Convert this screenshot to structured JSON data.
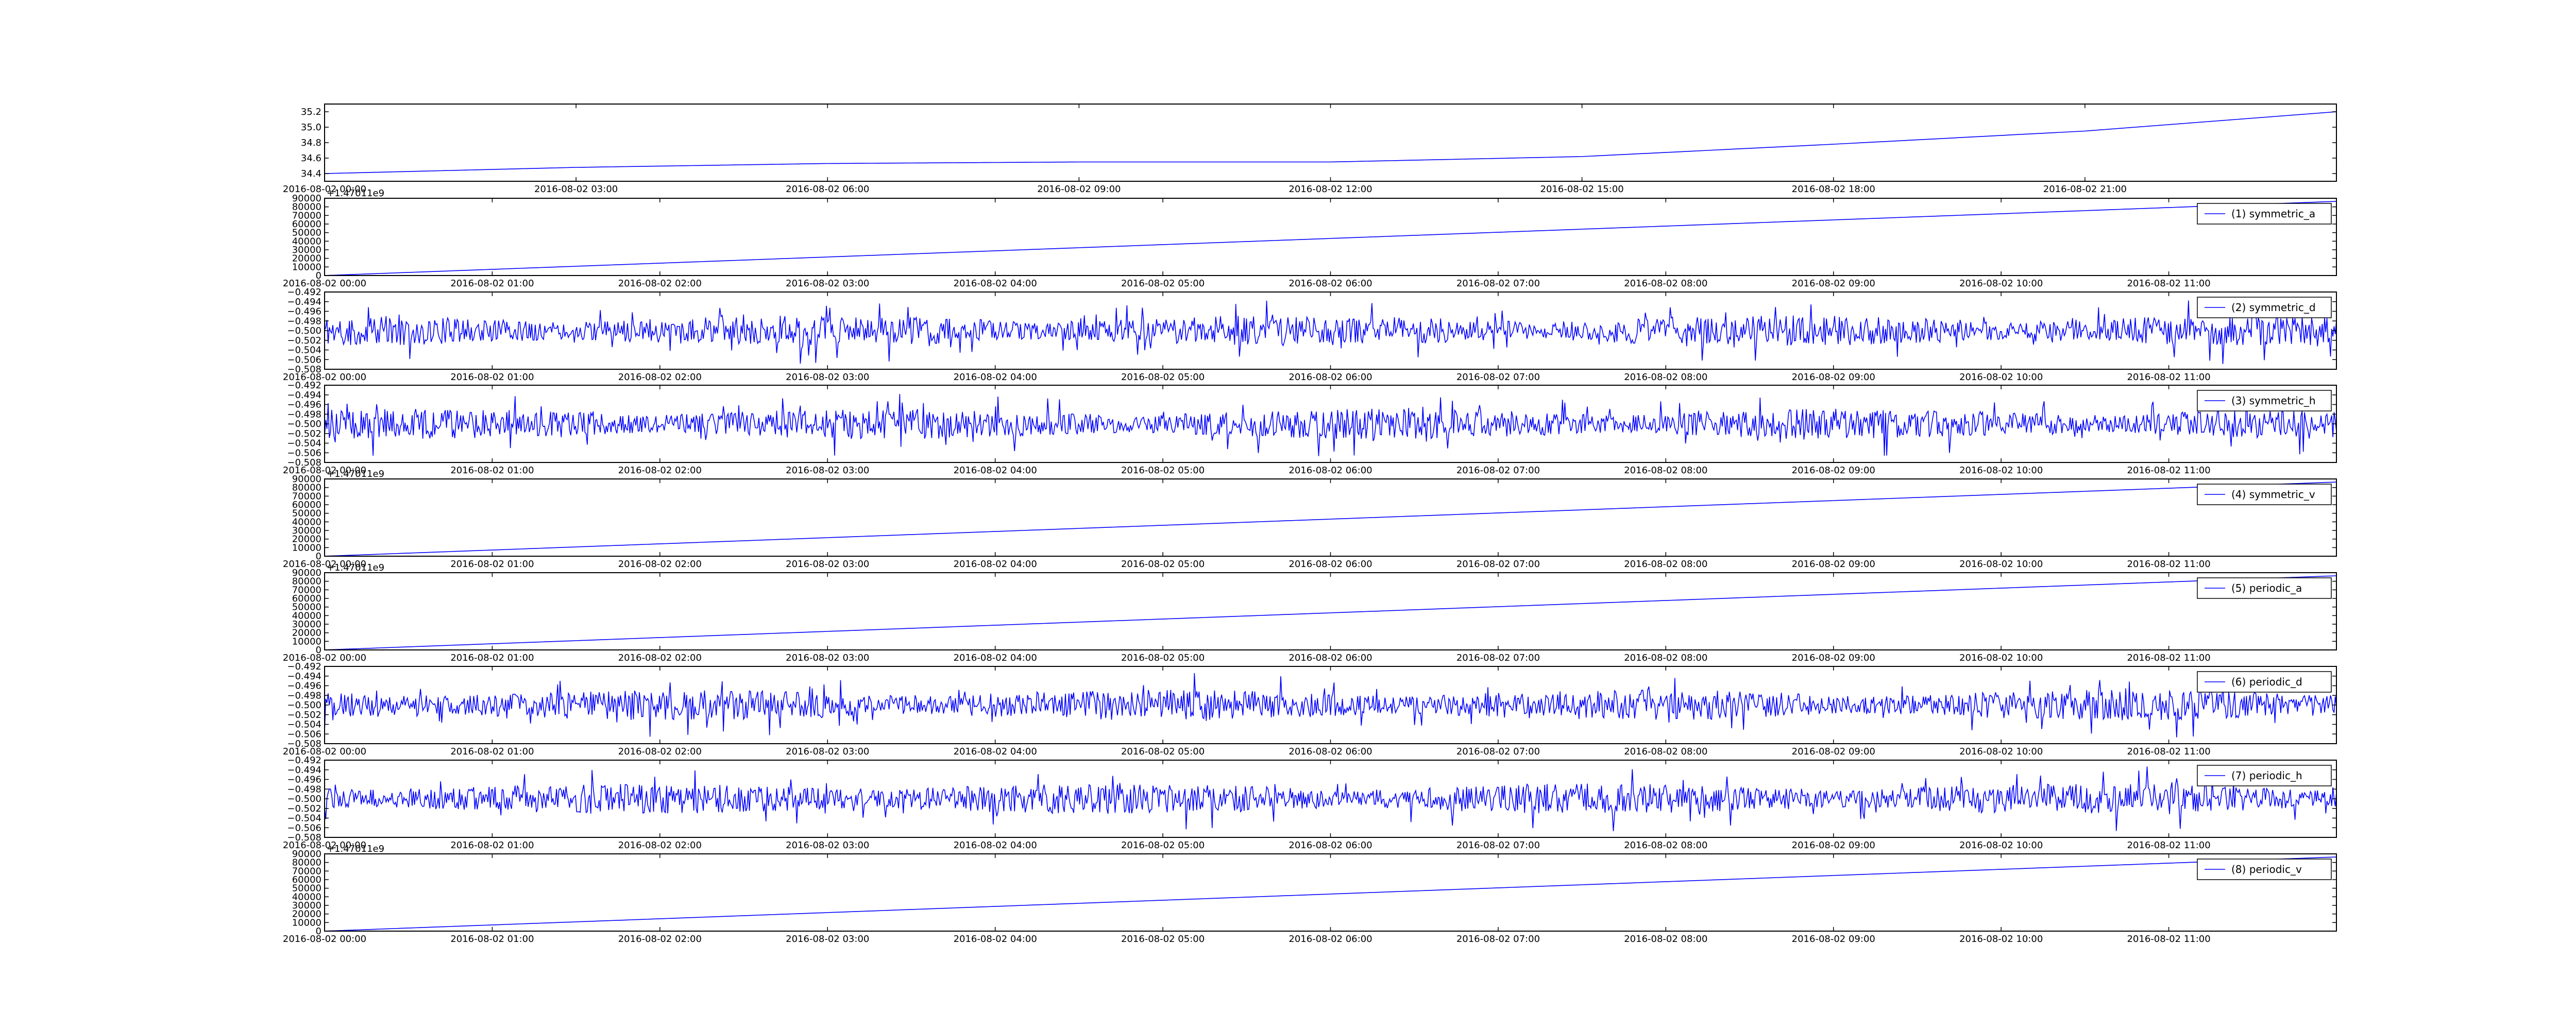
{
  "colors": {
    "line": "#0000ff",
    "axis": "#000000",
    "background": "#ffffff"
  },
  "chart_data": [
    {
      "type": "line",
      "panel": 0,
      "x_ticks": [
        "2016-08-02 00:00",
        "2016-08-02 03:00",
        "2016-08-02 06:00",
        "2016-08-02 09:00",
        "2016-08-02 12:00",
        "2016-08-02 15:00",
        "2016-08-02 18:00",
        "2016-08-02 21:00"
      ],
      "y_ticks": [
        "34.4",
        "34.6",
        "34.8",
        "35.0",
        "35.2"
      ],
      "ylim": [
        34.3,
        35.3
      ],
      "x_range_hours": [
        0,
        24
      ],
      "offset_label": "",
      "legend": "",
      "series": [
        {
          "x_hours": [
            0,
            3,
            6,
            9,
            12,
            15,
            18,
            21,
            24
          ],
          "values": [
            34.4,
            34.48,
            34.53,
            34.55,
            34.55,
            34.62,
            34.78,
            34.95,
            35.2
          ]
        }
      ]
    },
    {
      "type": "line",
      "panel": 1,
      "x_ticks": [
        "2016-08-02 00:00",
        "2016-08-02 01:00",
        "2016-08-02 02:00",
        "2016-08-02 03:00",
        "2016-08-02 04:00",
        "2016-08-02 05:00",
        "2016-08-02 06:00",
        "2016-08-02 07:00",
        "2016-08-02 08:00",
        "2016-08-02 09:00",
        "2016-08-02 10:00",
        "2016-08-02 11:00"
      ],
      "y_ticks": [
        "0",
        "10000",
        "20000",
        "30000",
        "40000",
        "50000",
        "60000",
        "70000",
        "80000",
        "90000"
      ],
      "ylim": [
        0,
        90000
      ],
      "x_range_hours": [
        0,
        12
      ],
      "offset_label": "+1.47011e9",
      "legend": "(1) symmetric_a",
      "series": [
        {
          "x_hours": [
            0,
            12
          ],
          "values": [
            0,
            86400
          ]
        }
      ]
    },
    {
      "type": "line",
      "panel": 2,
      "x_ticks": [
        "2016-08-02 00:00",
        "2016-08-02 01:00",
        "2016-08-02 02:00",
        "2016-08-02 03:00",
        "2016-08-02 04:00",
        "2016-08-02 05:00",
        "2016-08-02 06:00",
        "2016-08-02 07:00",
        "2016-08-02 08:00",
        "2016-08-02 09:00",
        "2016-08-02 10:00",
        "2016-08-02 11:00"
      ],
      "y_ticks": [
        "−0.508",
        "−0.506",
        "−0.504",
        "−0.502",
        "−0.500",
        "−0.498",
        "−0.496",
        "−0.494",
        "−0.492"
      ],
      "ylim": [
        -0.508,
        -0.492
      ],
      "x_range_hours": [
        0,
        12
      ],
      "offset_label": "",
      "legend": "(2) symmetric_d",
      "series": [
        {
          "center": -0.5,
          "amplitude": 0.007,
          "seed": 11
        }
      ]
    },
    {
      "type": "line",
      "panel": 3,
      "x_ticks": [
        "2016-08-02 00:00",
        "2016-08-02 01:00",
        "2016-08-02 02:00",
        "2016-08-02 03:00",
        "2016-08-02 04:00",
        "2016-08-02 05:00",
        "2016-08-02 06:00",
        "2016-08-02 07:00",
        "2016-08-02 08:00",
        "2016-08-02 09:00",
        "2016-08-02 10:00",
        "2016-08-02 11:00"
      ],
      "y_ticks": [
        "−0.508",
        "−0.506",
        "−0.504",
        "−0.502",
        "−0.500",
        "−0.498",
        "−0.496",
        "−0.494",
        "−0.492"
      ],
      "ylim": [
        -0.508,
        -0.492
      ],
      "x_range_hours": [
        0,
        12
      ],
      "offset_label": "",
      "legend": "(3) symmetric_h",
      "series": [
        {
          "center": -0.5,
          "amplitude": 0.007,
          "seed": 23
        }
      ]
    },
    {
      "type": "line",
      "panel": 4,
      "x_ticks": [
        "2016-08-02 00:00",
        "2016-08-02 01:00",
        "2016-08-02 02:00",
        "2016-08-02 03:00",
        "2016-08-02 04:00",
        "2016-08-02 05:00",
        "2016-08-02 06:00",
        "2016-08-02 07:00",
        "2016-08-02 08:00",
        "2016-08-02 09:00",
        "2016-08-02 10:00",
        "2016-08-02 11:00"
      ],
      "y_ticks": [
        "0",
        "10000",
        "20000",
        "30000",
        "40000",
        "50000",
        "60000",
        "70000",
        "80000",
        "90000"
      ],
      "ylim": [
        0,
        90000
      ],
      "x_range_hours": [
        0,
        12
      ],
      "offset_label": "+1.47011e9",
      "legend": "(4) symmetric_v",
      "series": [
        {
          "x_hours": [
            0,
            12
          ],
          "values": [
            0,
            86400
          ]
        }
      ]
    },
    {
      "type": "line",
      "panel": 5,
      "x_ticks": [
        "2016-08-02 00:00",
        "2016-08-02 01:00",
        "2016-08-02 02:00",
        "2016-08-02 03:00",
        "2016-08-02 04:00",
        "2016-08-02 05:00",
        "2016-08-02 06:00",
        "2016-08-02 07:00",
        "2016-08-02 08:00",
        "2016-08-02 09:00",
        "2016-08-02 10:00",
        "2016-08-02 11:00"
      ],
      "y_ticks": [
        "0",
        "10000",
        "20000",
        "30000",
        "40000",
        "50000",
        "60000",
        "70000",
        "80000",
        "90000"
      ],
      "ylim": [
        0,
        90000
      ],
      "x_range_hours": [
        0,
        12
      ],
      "offset_label": "+1.47011e9",
      "legend": "(5) periodic_a",
      "series": [
        {
          "x_hours": [
            0,
            12
          ],
          "values": [
            0,
            86400
          ]
        }
      ]
    },
    {
      "type": "line",
      "panel": 6,
      "x_ticks": [
        "2016-08-02 00:00",
        "2016-08-02 01:00",
        "2016-08-02 02:00",
        "2016-08-02 03:00",
        "2016-08-02 04:00",
        "2016-08-02 05:00",
        "2016-08-02 06:00",
        "2016-08-02 07:00",
        "2016-08-02 08:00",
        "2016-08-02 09:00",
        "2016-08-02 10:00",
        "2016-08-02 11:00"
      ],
      "y_ticks": [
        "−0.508",
        "−0.506",
        "−0.504",
        "−0.502",
        "−0.500",
        "−0.498",
        "−0.496",
        "−0.494",
        "−0.492"
      ],
      "ylim": [
        -0.508,
        -0.492
      ],
      "x_range_hours": [
        0,
        12
      ],
      "offset_label": "",
      "legend": "(6) periodic_d",
      "series": [
        {
          "center": -0.5,
          "amplitude": 0.007,
          "seed": 37
        }
      ]
    },
    {
      "type": "line",
      "panel": 7,
      "x_ticks": [
        "2016-08-02 00:00",
        "2016-08-02 01:00",
        "2016-08-02 02:00",
        "2016-08-02 03:00",
        "2016-08-02 04:00",
        "2016-08-02 05:00",
        "2016-08-02 06:00",
        "2016-08-02 07:00",
        "2016-08-02 08:00",
        "2016-08-02 09:00",
        "2016-08-02 10:00",
        "2016-08-02 11:00"
      ],
      "y_ticks": [
        "−0.508",
        "−0.506",
        "−0.504",
        "−0.502",
        "−0.500",
        "−0.498",
        "−0.496",
        "−0.494",
        "−0.492"
      ],
      "ylim": [
        -0.508,
        -0.492
      ],
      "x_range_hours": [
        0,
        12
      ],
      "offset_label": "",
      "legend": "(7) periodic_h",
      "series": [
        {
          "center": -0.5,
          "amplitude": 0.007,
          "seed": 53
        }
      ]
    },
    {
      "type": "line",
      "panel": 8,
      "x_ticks": [
        "2016-08-02 00:00",
        "2016-08-02 01:00",
        "2016-08-02 02:00",
        "2016-08-02 03:00",
        "2016-08-02 04:00",
        "2016-08-02 05:00",
        "2016-08-02 06:00",
        "2016-08-02 07:00",
        "2016-08-02 08:00",
        "2016-08-02 09:00",
        "2016-08-02 10:00",
        "2016-08-02 11:00"
      ],
      "y_ticks": [
        "0",
        "10000",
        "20000",
        "30000",
        "40000",
        "50000",
        "60000",
        "70000",
        "80000",
        "90000"
      ],
      "ylim": [
        0,
        90000
      ],
      "x_range_hours": [
        0,
        12
      ],
      "offset_label": "+1.47011e9",
      "legend": "(8) periodic_v",
      "series": [
        {
          "x_hours": [
            0,
            12
          ],
          "values": [
            0,
            86400
          ]
        }
      ]
    }
  ]
}
